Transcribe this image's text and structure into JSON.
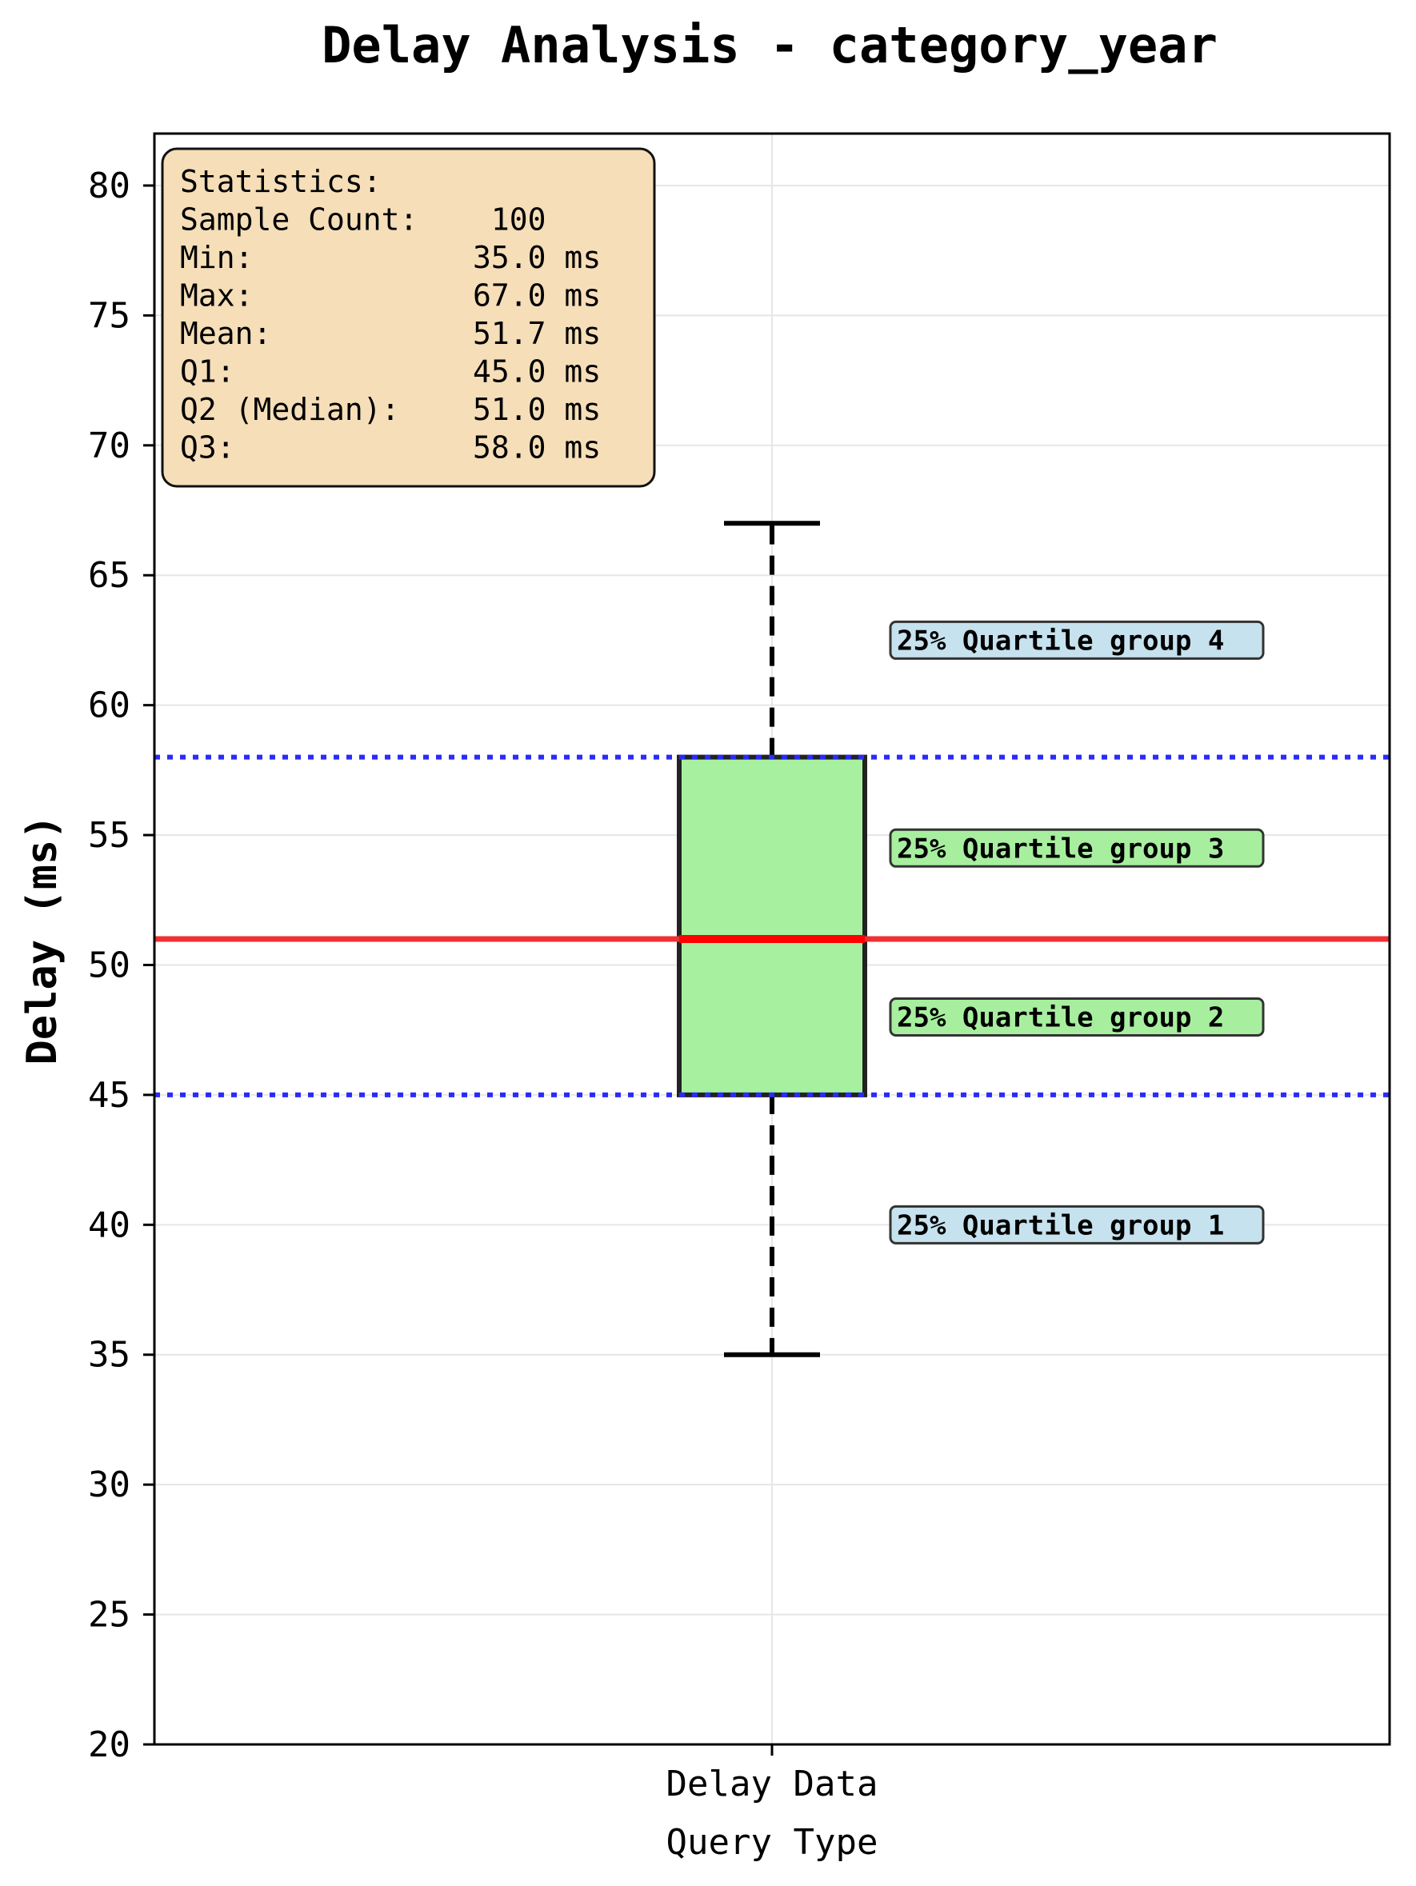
{
  "chart_data": {
    "type": "box",
    "title": "Delay Analysis - category_year",
    "xlabel": "Query Type",
    "ylabel": "Delay (ms)",
    "categories": [
      "Delay Data"
    ],
    "ylim": [
      20,
      82
    ],
    "yticks": [
      20,
      25,
      30,
      35,
      40,
      45,
      50,
      55,
      60,
      65,
      70,
      75,
      80
    ],
    "grid": true,
    "box": {
      "min": 35.0,
      "q1": 45.0,
      "median": 51.0,
      "q3": 58.0,
      "max": 67.0
    },
    "reference_lines": [
      {
        "value": 58.0,
        "style": "dotted",
        "color": "#2a2aff"
      },
      {
        "value": 51.0,
        "style": "solid",
        "color": "#f03030"
      },
      {
        "value": 45.0,
        "style": "dotted",
        "color": "#2a2aff"
      }
    ],
    "quartile_labels": [
      {
        "label": "25% Quartile group 4",
        "y": 62.5,
        "color": "#c6e2ee"
      },
      {
        "label": "25% Quartile group 3",
        "y": 54.5,
        "color": "#a7ef9f"
      },
      {
        "label": "25% Quartile group 2",
        "y": 48.0,
        "color": "#a7ef9f"
      },
      {
        "label": "25% Quartile group 1",
        "y": 40.0,
        "color": "#c6e2ee"
      }
    ],
    "stats_box": {
      "lines": [
        "Statistics:",
        "Sample Count:    100",
        "Min:            35.0 ms",
        "Max:            67.0 ms",
        "Mean:           51.7 ms",
        "Q1:             45.0 ms",
        "Q2 (Median):    51.0 ms",
        "Q3:             58.0 ms"
      ],
      "color": "#f5deb8"
    },
    "box_color": "#a6f0a0"
  }
}
